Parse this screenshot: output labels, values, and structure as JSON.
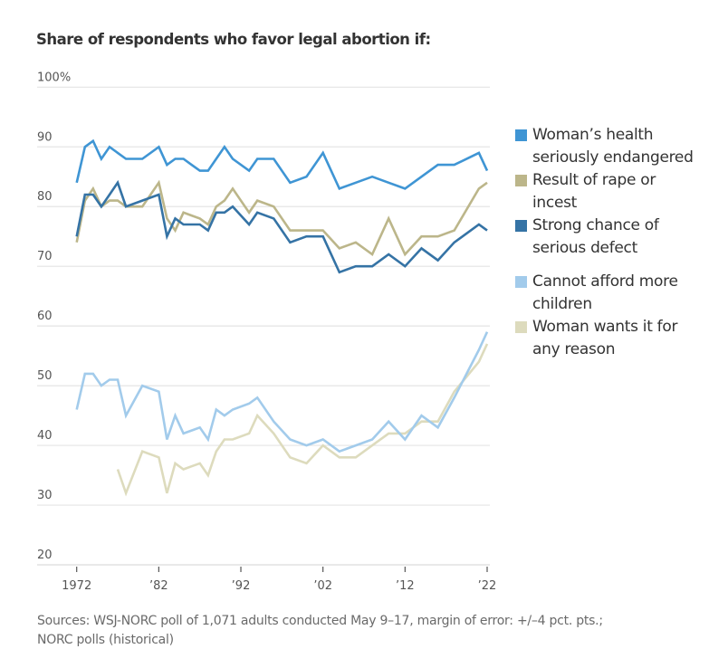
{
  "title": "Share of respondents who favor legal abortion if:",
  "source": {
    "line1": "Sources: WSJ-NORC poll of 1,071 adults conducted May 9–17, margin of error: +/–4 pct. pts.;",
    "line2": "NORC polls (historical)"
  },
  "chart_data": {
    "type": "line",
    "title": "Share of respondents who favor legal abortion if:",
    "xlabel": "",
    "ylabel": "",
    "xlim": [
      1972,
      2022
    ],
    "ylim": [
      20,
      100
    ],
    "grid": true,
    "legend_position": "right",
    "y_ticks": [
      {
        "value": 100,
        "label": "100%"
      },
      {
        "value": 90,
        "label": "90"
      },
      {
        "value": 80,
        "label": "80"
      },
      {
        "value": 70,
        "label": "70"
      },
      {
        "value": 60,
        "label": "60"
      },
      {
        "value": 50,
        "label": "50"
      },
      {
        "value": 40,
        "label": "40"
      },
      {
        "value": 30,
        "label": "30"
      },
      {
        "value": 20,
        "label": "20"
      }
    ],
    "x_ticks": [
      {
        "value": 1972,
        "label": "1972"
      },
      {
        "value": 1982,
        "label": "’82"
      },
      {
        "value": 1992,
        "label": "’92"
      },
      {
        "value": 2002,
        "label": "’02"
      },
      {
        "value": 2012,
        "label": "’12"
      },
      {
        "value": 2022,
        "label": "’22"
      }
    ],
    "series": [
      {
        "name": "Woman’s health seriously endangered",
        "legend_lines": [
          "Woman’s health",
          "seriously endangered"
        ],
        "color": "#3f95d4",
        "x": [
          1972,
          1973,
          1974,
          1975,
          1976,
          1977,
          1978,
          1980,
          1982,
          1983,
          1984,
          1985,
          1986,
          1987,
          1988,
          1989,
          1990,
          1991,
          1993,
          1994,
          1996,
          1998,
          2000,
          2002,
          2004,
          2006,
          2008,
          2010,
          2012,
          2014,
          2016,
          2018,
          2021,
          2022
        ],
        "values": [
          84,
          90,
          91,
          88,
          90,
          89,
          88,
          88,
          90,
          87,
          88,
          88,
          87,
          86,
          86,
          88,
          90,
          88,
          86,
          88,
          88,
          84,
          85,
          89,
          83,
          84,
          85,
          84,
          83,
          85,
          87,
          87,
          89,
          86
        ]
      },
      {
        "name": "Result of rape or incest",
        "legend_lines": [
          "Result of rape or",
          "incest"
        ],
        "color": "#bcb68a",
        "x": [
          1972,
          1973,
          1974,
          1975,
          1976,
          1977,
          1978,
          1980,
          1982,
          1983,
          1984,
          1985,
          1986,
          1987,
          1988,
          1989,
          1990,
          1991,
          1993,
          1994,
          1996,
          1998,
          2000,
          2002,
          2004,
          2006,
          2008,
          2010,
          2012,
          2014,
          2016,
          2018,
          2021,
          2022
        ],
        "values": [
          74,
          81,
          83,
          80,
          81,
          81,
          80,
          80,
          84,
          78,
          76,
          79,
          78.5,
          78,
          77,
          80,
          81,
          83,
          79,
          81,
          80,
          76,
          76,
          76,
          73,
          74,
          72,
          78,
          72,
          75,
          75,
          76,
          83,
          84
        ]
      },
      {
        "name": "Strong chance of serious defect",
        "legend_lines": [
          "Strong chance of",
          "serious defect"
        ],
        "color": "#3573a5",
        "x": [
          1972,
          1973,
          1974,
          1975,
          1976,
          1977,
          1978,
          1980,
          1982,
          1983,
          1984,
          1985,
          1986,
          1987,
          1988,
          1989,
          1990,
          1991,
          1993,
          1994,
          1996,
          1998,
          2000,
          2002,
          2004,
          2006,
          2008,
          2010,
          2012,
          2014,
          2016,
          2018,
          2021,
          2022
        ],
        "values": [
          75,
          82,
          82,
          80,
          82,
          84,
          80,
          81,
          82,
          75,
          78,
          77,
          77,
          77,
          76,
          79,
          79,
          80,
          77,
          79,
          78,
          74,
          75,
          75,
          69,
          70,
          70,
          72,
          70,
          73,
          71,
          74,
          77,
          76
        ]
      },
      {
        "name": "Cannot afford more children",
        "legend_lines": [
          "Cannot afford more",
          "children"
        ],
        "color": "#a2cbeb",
        "gap_before": true,
        "x": [
          1972,
          1973,
          1974,
          1975,
          1976,
          1977,
          1978,
          1980,
          1982,
          1983,
          1984,
          1985,
          1986,
          1987,
          1988,
          1989,
          1990,
          1991,
          1993,
          1994,
          1996,
          1998,
          2000,
          2002,
          2004,
          2006,
          2008,
          2010,
          2012,
          2014,
          2016,
          2018,
          2021,
          2022
        ],
        "values": [
          46,
          52,
          52,
          50,
          51,
          51,
          45,
          50,
          49,
          41,
          45,
          42,
          42.5,
          43,
          41,
          46,
          45,
          46,
          47,
          48,
          44,
          41,
          40,
          41,
          39,
          40,
          41,
          44,
          41,
          45,
          43,
          48,
          56,
          59
        ]
      },
      {
        "name": "Woman wants it for any reason",
        "legend_lines": [
          "Woman wants it for",
          "any reason"
        ],
        "color": "#dddbbd",
        "x": [
          1977,
          1978,
          1980,
          1982,
          1983,
          1984,
          1985,
          1986,
          1987,
          1988,
          1989,
          1990,
          1991,
          1993,
          1994,
          1996,
          1998,
          2000,
          2002,
          2004,
          2006,
          2008,
          2010,
          2012,
          2014,
          2016,
          2018,
          2021,
          2022
        ],
        "values": [
          36,
          32,
          39,
          38,
          32,
          37,
          36,
          36.5,
          37,
          35,
          39,
          41,
          41,
          42,
          45,
          42,
          38,
          37,
          40,
          38,
          38,
          40,
          42,
          42,
          44,
          44,
          49,
          54,
          57
        ]
      }
    ]
  }
}
